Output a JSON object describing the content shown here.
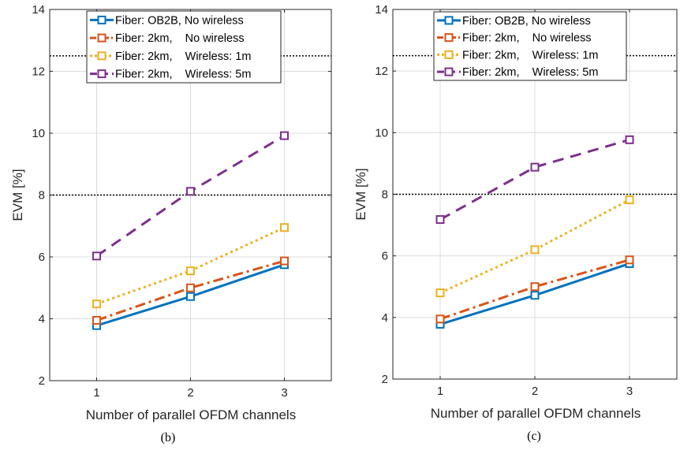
{
  "chart_data": [
    {
      "type": "line",
      "caption": "(b)",
      "xlabel": "Number of parallel OFDM channels",
      "ylabel": "EVM [%]",
      "x": [
        1,
        2,
        3
      ],
      "xlim": [
        0.5,
        3.5
      ],
      "ylim": [
        2,
        14
      ],
      "xticks": [
        1,
        2,
        3
      ],
      "yticks": [
        2,
        4,
        6,
        8,
        10,
        12,
        14
      ],
      "grid": true,
      "legend_position": "top",
      "thresholds": [
        12.5,
        8
      ],
      "series": [
        {
          "name": "Fiber: OB2B, No wireless",
          "values": [
            3.78,
            4.72,
            5.75
          ],
          "color": "#0072BD",
          "style": "solid"
        },
        {
          "name": "Fiber: 2km,    No wireless",
          "values": [
            3.95,
            5.0,
            5.87
          ],
          "color": "#D95319",
          "style": "dashdot"
        },
        {
          "name": "Fiber: 2km,    Wireless: 1m",
          "values": [
            4.48,
            5.55,
            6.95
          ],
          "color": "#EDB120",
          "style": "dotted"
        },
        {
          "name": "Fiber: 2km,    Wireless: 5m",
          "values": [
            6.03,
            8.12,
            9.92
          ],
          "color": "#7E2F8E",
          "style": "dashed"
        }
      ]
    },
    {
      "type": "line",
      "caption": "(c)",
      "xlabel": "Number of parallel OFDM channels",
      "ylabel": "EVM [%]",
      "x": [
        1,
        2,
        3
      ],
      "xlim": [
        0.5,
        3.5
      ],
      "ylim": [
        2,
        14
      ],
      "xticks": [
        1,
        2,
        3
      ],
      "yticks": [
        2,
        4,
        6,
        8,
        10,
        12,
        14
      ],
      "grid": true,
      "legend_position": "top",
      "thresholds": [
        12.5,
        8
      ],
      "series": [
        {
          "name": "Fiber: OB2B, No wireless",
          "values": [
            3.78,
            4.72,
            5.75
          ],
          "color": "#0072BD",
          "style": "solid"
        },
        {
          "name": "Fiber: 2km,    No wireless",
          "values": [
            3.95,
            5.0,
            5.87
          ],
          "color": "#D95319",
          "style": "dashdot"
        },
        {
          "name": "Fiber: 2km,    Wireless: 1m",
          "values": [
            4.8,
            6.2,
            7.82
          ],
          "color": "#EDB120",
          "style": "dotted"
        },
        {
          "name": "Fiber: 2km,    Wireless: 5m",
          "values": [
            7.18,
            8.88,
            9.77
          ],
          "color": "#7E2F8E",
          "style": "dashed"
        }
      ]
    }
  ]
}
